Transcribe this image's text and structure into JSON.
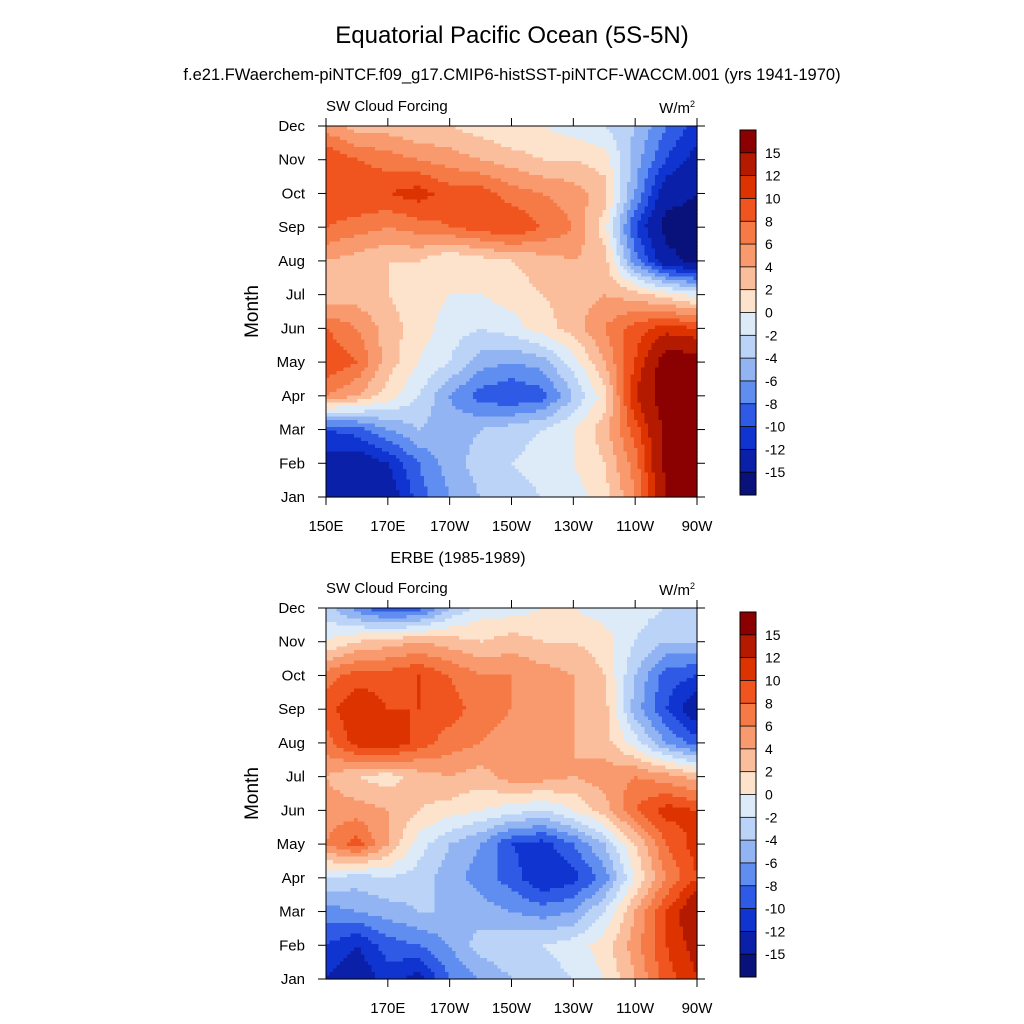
{
  "title": "Equatorial Pacific Ocean (5S-5N)",
  "subtitle": "f.e21.FWaerchem-piNTCF.f09_g17.CMIP6-histSST-piNTCF-WACCM.001 (yrs 1941-1970)",
  "colorbar": {
    "labels": [
      "15",
      "12",
      "10",
      "8",
      "6",
      "4",
      "2",
      "0",
      "-2",
      "-4",
      "-6",
      "-8",
      "-10",
      "-12",
      "-15"
    ],
    "colors_top_to_bottom": [
      "#8b0000",
      "#b31a00",
      "#dd3300",
      "#f05520",
      "#f57a45",
      "#f89a6e",
      "#fbbe9c",
      "#fde3cc",
      "#ddebf8",
      "#bcd3f8",
      "#92b4f2",
      "#5f8df0",
      "#2f5ae6",
      "#0f34d0",
      "#0a20a8",
      "#08127a"
    ]
  },
  "chart_data": [
    {
      "type": "heatmap",
      "panel_title": "",
      "left_label": "SW Cloud Forcing",
      "units_label": "W/m",
      "units_superscript": "2",
      "ylabel": "Month",
      "x_ticks": [
        "150E",
        "170E",
        "170W",
        "150W",
        "130W",
        "110W",
        "90W"
      ],
      "y_ticks": [
        "Jan",
        "Feb",
        "Mar",
        "Apr",
        "May",
        "Jun",
        "Jul",
        "Aug",
        "Sep",
        "Oct",
        "Nov",
        "Dec"
      ],
      "levels": [
        -15,
        -12,
        -10,
        -8,
        -6,
        -4,
        -2,
        0,
        2,
        4,
        6,
        8,
        10,
        12,
        15
      ],
      "x": [
        "150E",
        "160E",
        "170E",
        "180",
        "170W",
        "160W",
        "150W",
        "140W",
        "130W",
        "120W",
        "110W",
        "100W",
        "90W"
      ],
      "z_by_month": [
        [
          -14,
          -15,
          -14,
          -9,
          -6,
          -4,
          -3,
          -2,
          -1,
          1,
          6,
          15,
          16
        ],
        [
          -13,
          -14,
          -12,
          -8,
          -5,
          -3,
          -2,
          -1,
          0,
          2,
          7,
          16,
          16
        ],
        [
          -10,
          -9,
          -6,
          -4,
          -5,
          -4,
          -3,
          -2,
          0,
          3,
          9,
          16,
          16
        ],
        [
          6,
          4,
          1,
          -2,
          -6,
          -9,
          -10,
          -9,
          -4,
          1,
          12,
          17,
          17
        ],
        [
          10,
          8,
          3,
          0,
          -2,
          -5,
          -6,
          -5,
          -1,
          4,
          10,
          17,
          17
        ],
        [
          8,
          6,
          3,
          1,
          -1,
          -2,
          -1,
          1,
          3,
          6,
          9,
          11,
          10
        ],
        [
          2,
          3,
          2,
          1,
          0,
          0,
          1,
          2,
          3,
          4,
          3,
          1,
          -1
        ],
        [
          4,
          3,
          2,
          2,
          0,
          1,
          2,
          3,
          4,
          3,
          -7,
          -14,
          -16
        ],
        [
          8,
          7,
          6,
          7,
          8,
          9,
          10,
          8,
          6,
          1,
          -10,
          -16,
          -16
        ],
        [
          10,
          10,
          10,
          11,
          9,
          9,
          7,
          6,
          5,
          3,
          -6,
          -14,
          -15
        ],
        [
          10,
          8,
          7,
          6,
          5,
          4,
          3,
          2,
          2,
          1,
          -5,
          -10,
          -13
        ],
        [
          5,
          3,
          3,
          2,
          2,
          1,
          0,
          0,
          -1,
          -2,
          -4,
          -8,
          -11
        ]
      ]
    },
    {
      "type": "heatmap",
      "panel_title": "ERBE (1985-1989)",
      "left_label": "SW Cloud Forcing",
      "units_label": "W/m",
      "units_superscript": "2",
      "ylabel": "Month",
      "x_ticks": [
        "170E",
        "170W",
        "150W",
        "130W",
        "110W",
        "90W"
      ],
      "y_ticks": [
        "Jan",
        "Feb",
        "Mar",
        "Apr",
        "May",
        "Jun",
        "Jul",
        "Aug",
        "Sep",
        "Oct",
        "Nov",
        "Dec"
      ],
      "levels": [
        -15,
        -12,
        -10,
        -8,
        -6,
        -4,
        -2,
        0,
        2,
        4,
        6,
        8,
        10,
        12,
        15
      ],
      "x": [
        "150E",
        "160E",
        "170E",
        "180",
        "170W",
        "160W",
        "150W",
        "140W",
        "130W",
        "120W",
        "110W",
        "100W",
        "90W"
      ],
      "z_by_month": [
        [
          -12,
          -14,
          -11,
          -13,
          -8,
          -6,
          -4,
          -3,
          -2,
          0,
          4,
          9,
          12
        ],
        [
          -10,
          -12,
          -9,
          -8,
          -6,
          -3,
          -2,
          -2,
          -1,
          1,
          5,
          10,
          13
        ],
        [
          -7,
          -6,
          -5,
          -4,
          -4,
          -5,
          -6,
          -7,
          -6,
          -2,
          4,
          10,
          15
        ],
        [
          -2,
          -3,
          -2,
          -3,
          -5,
          -7,
          -9,
          -12,
          -11,
          -7,
          0,
          6,
          10
        ],
        [
          6,
          9,
          4,
          -1,
          -4,
          -6,
          -10,
          -11,
          -8,
          -4,
          2,
          8,
          11
        ],
        [
          5,
          5,
          4,
          2,
          1,
          0,
          -1,
          -2,
          0,
          3,
          8,
          11,
          10
        ],
        [
          4,
          2,
          1,
          3,
          4,
          3,
          5,
          5,
          4,
          5,
          6,
          5,
          3
        ],
        [
          7,
          11,
          12,
          9,
          7,
          6,
          5,
          5,
          4,
          3,
          -1,
          -6,
          -9
        ],
        [
          9,
          12,
          10,
          10,
          9,
          7,
          6,
          6,
          4,
          3,
          -5,
          -10,
          -14
        ],
        [
          7,
          9,
          9,
          10,
          8,
          6,
          6,
          5,
          4,
          2,
          -4,
          -9,
          -10
        ],
        [
          0,
          2,
          3,
          4,
          3,
          2,
          3,
          2,
          2,
          1,
          -2,
          -4,
          -4
        ],
        [
          -3,
          -7,
          -10,
          -9,
          -4,
          -1,
          -1,
          0,
          0,
          -1,
          -1,
          -2,
          -2
        ]
      ]
    }
  ]
}
